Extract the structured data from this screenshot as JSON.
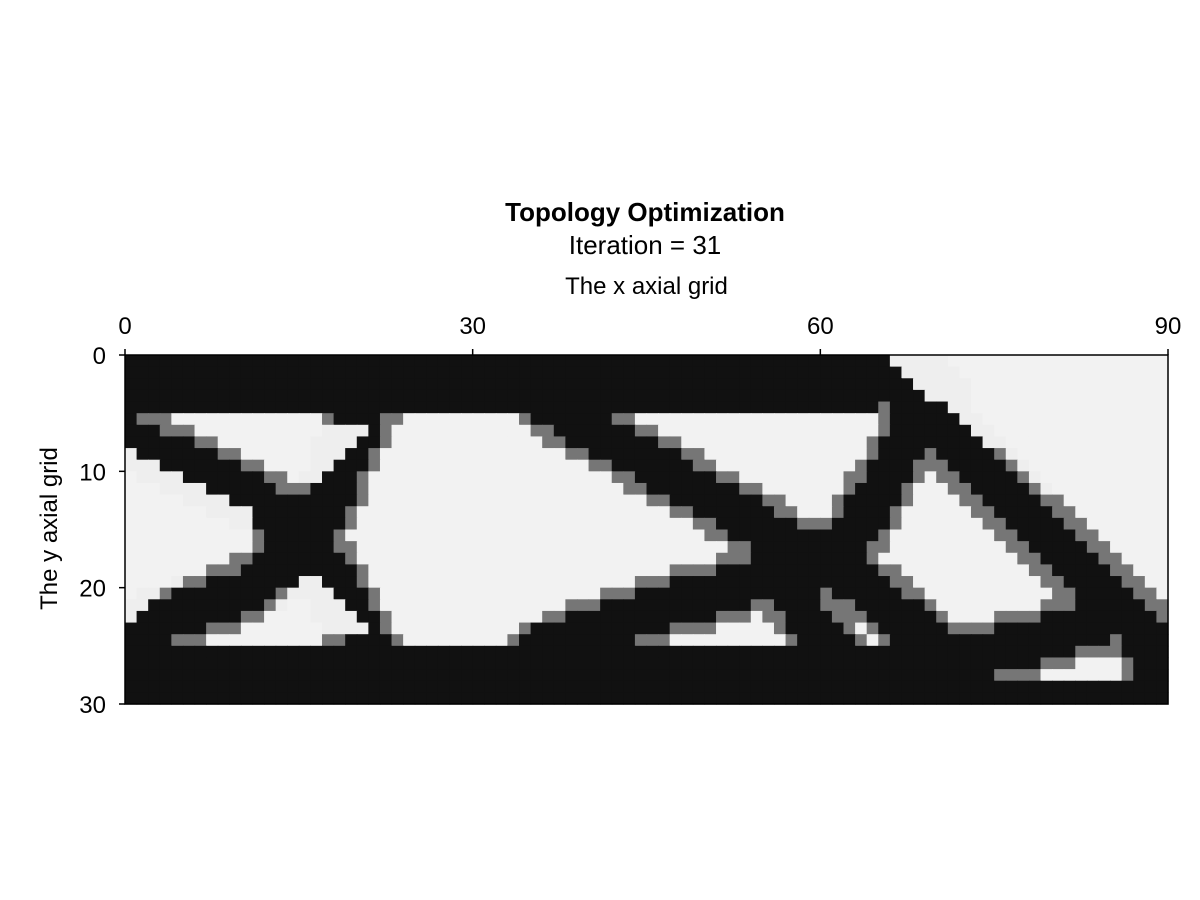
{
  "chart_data": {
    "type": "heatmap",
    "title": "Topology Optimization",
    "subtitle": "Iteration = 31",
    "xlabel": "The x axial grid",
    "ylabel": "The y axial grid",
    "xlim": [
      0,
      90
    ],
    "ylim": [
      0,
      30
    ],
    "y_inverted": true,
    "x_axis_position": "top",
    "x_ticks": [
      "0",
      "30",
      "60",
      "90"
    ],
    "y_ticks": [
      "0",
      "10",
      "20",
      "30"
    ],
    "colormap": "grays",
    "value_range": [
      0,
      1
    ],
    "grid": false,
    "legend": "none",
    "nx": 90,
    "ny": 30,
    "structure": {
      "top_flange": [
        [
          0,
          0,
          65,
          5
        ]
      ],
      "bottom_flange": [
        [
          0,
          25,
          70,
          30
        ],
        [
          70,
          28,
          90,
          30
        ]
      ],
      "members": [
        [
          [
            0,
            7
          ],
          [
            11,
            12
          ],
          [
            16,
            16
          ]
        ],
        [
          [
            0,
            24
          ],
          [
            11,
            20
          ],
          [
            16,
            16
          ]
        ],
        [
          [
            16,
            16
          ],
          [
            21,
            4
          ]
        ],
        [
          [
            16,
            16
          ],
          [
            21,
            25
          ]
        ],
        [
          [
            36,
            4
          ],
          [
            64,
            20
          ],
          [
            72,
            27
          ]
        ],
        [
          [
            36,
            25
          ],
          [
            62,
            17
          ],
          [
            70,
            3
          ]
        ],
        [
          [
            64,
            0
          ],
          [
            88,
            24
          ],
          [
            90,
            30
          ]
        ],
        [
          [
            57,
            20
          ],
          [
            63,
            28
          ]
        ],
        [
          [
            70,
            27
          ],
          [
            84,
            23
          ]
        ]
      ],
      "voids": [
        [
          [
            0,
            8
          ],
          [
            12,
            14
          ],
          [
            0,
            23
          ]
        ],
        [
          [
            10,
            6
          ],
          [
            21,
            6
          ],
          [
            16,
            11
          ]
        ],
        [
          [
            10,
            24
          ],
          [
            21,
            24
          ],
          [
            16,
            19
          ]
        ],
        [
          [
            65,
            0
          ],
          [
            90,
            0
          ],
          [
            90,
            20
          ]
        ]
      ],
      "circular_void": [
        31,
        15,
        9
      ]
    }
  }
}
